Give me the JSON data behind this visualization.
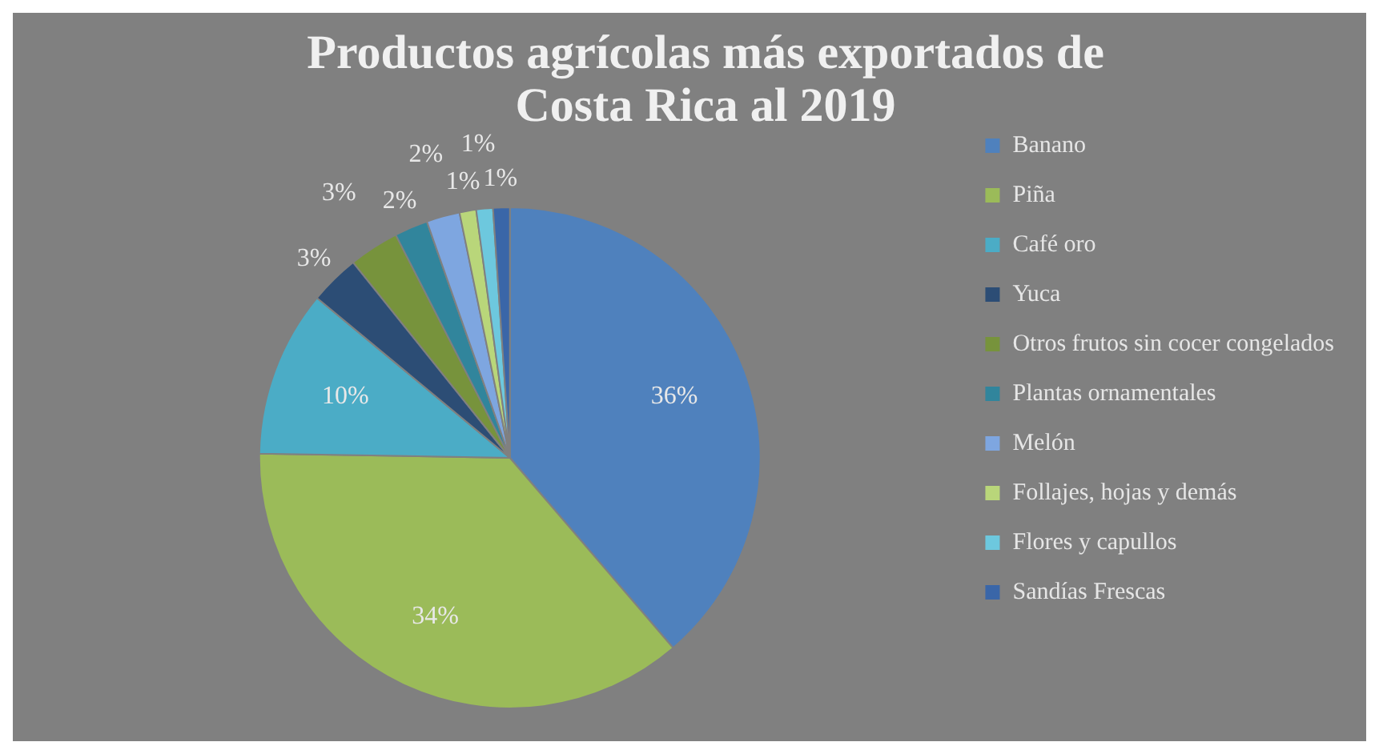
{
  "chart_data": {
    "type": "pie",
    "title": "Productos agrícolas más exportados de Costa Rica al 2019",
    "categories": [
      "Banano",
      "Piña",
      "Café oro",
      "Yuca",
      "Otros frutos sin cocer congelados",
      "Plantas ornamentales",
      "Melón",
      "Follajes, hojas y demás",
      "Flores y capullos",
      "Sandías Frescas"
    ],
    "values": [
      36,
      34,
      10,
      3,
      3,
      2,
      2,
      1,
      1,
      1
    ],
    "value_labels": [
      "36%",
      "34%",
      "10%",
      "3%",
      "3%",
      "2%",
      "2%",
      "1%",
      "1%",
      "1%"
    ],
    "colors": [
      "#4f81bd",
      "#9bbb59",
      "#4bacc6",
      "#2c4d75",
      "#77933c",
      "#31859c",
      "#7ea6e0",
      "#b9d67a",
      "#6dc8de",
      "#3a66a8"
    ],
    "legend": "right"
  }
}
